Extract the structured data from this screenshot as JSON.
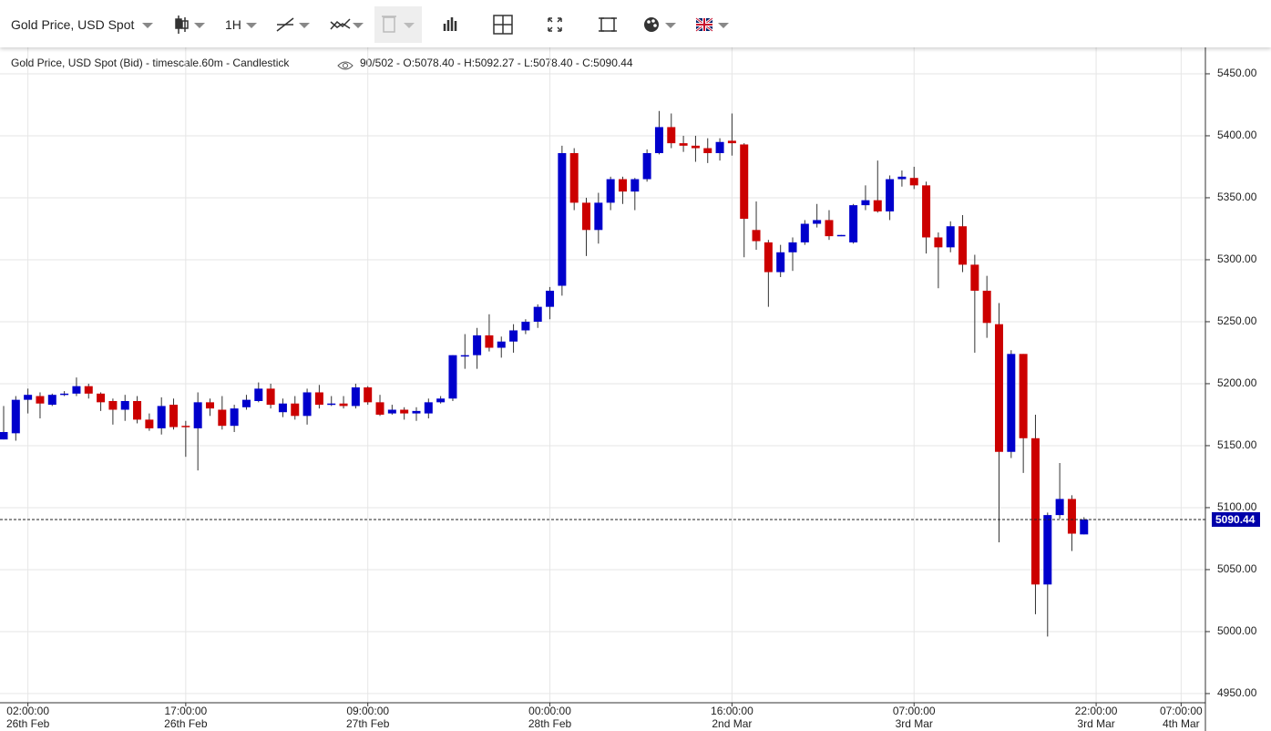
{
  "toolbar": {
    "instrument": "Gold Price, USD Spot",
    "interval": "1H"
  },
  "chart_data": {
    "type": "candlestick",
    "info_title": "Gold Price, USD Spot (Bid) - timescale.60m - Candlestick",
    "info_stats": "90/502 - O:5078.40 - H:5092.27 - L:5078.40 - C:5090.44",
    "up_color": "#0000cc",
    "down_color": "#cc0000",
    "grid": true,
    "xlim": [
      -0.3,
      99
    ],
    "ylim": [
      4942.6,
      5471.3
    ],
    "yticks": [
      {
        "value": 4950,
        "label": "4950.00"
      },
      {
        "value": 5000,
        "label": "5000.00"
      },
      {
        "value": 5050,
        "label": "5050.00"
      },
      {
        "value": 5100,
        "label": "5100.00"
      },
      {
        "value": 5150,
        "label": "5150.00"
      },
      {
        "value": 5200,
        "label": "5200.00"
      },
      {
        "value": 5250,
        "label": "5250.00"
      },
      {
        "value": 5300,
        "label": "5300.00"
      },
      {
        "value": 5350,
        "label": "5350.00"
      },
      {
        "value": 5400,
        "label": "5400.00"
      },
      {
        "value": 5450,
        "label": "5450.00"
      }
    ],
    "xticks": [
      {
        "value": 2,
        "label": [
          "02:00:00",
          "26th Feb"
        ]
      },
      {
        "value": 15,
        "label": [
          "17:00:00",
          "26th Feb"
        ]
      },
      {
        "value": 30,
        "label": [
          "09:00:00",
          "27th Feb"
        ]
      },
      {
        "value": 45,
        "label": [
          "00:00:00",
          "28th Feb"
        ]
      },
      {
        "value": 60,
        "label": [
          "16:00:00",
          "2nd Mar"
        ]
      },
      {
        "value": 75,
        "label": [
          "07:00:00",
          "3rd Mar"
        ]
      },
      {
        "value": 90,
        "label": [
          "22:00:00",
          "3rd Mar"
        ]
      },
      {
        "value": 97,
        "label": [
          "07:00:00",
          "4th Mar"
        ]
      }
    ],
    "open": [
      5155,
      5160,
      5187,
      5190,
      5183,
      5191,
      5192,
      5198,
      5192,
      5186,
      5179,
      5186,
      5171,
      5164,
      5183,
      5166,
      5164,
      5185,
      5179,
      5166,
      5181,
      5186,
      5196,
      5177,
      5184,
      5174,
      5193,
      5183,
      5184,
      5182,
      5197,
      5185,
      5176,
      5179,
      5176,
      5176,
      5185,
      5188,
      5222,
      5223,
      5239,
      5229,
      5234,
      5243,
      5250,
      5262,
      5279,
      5386,
      5346,
      5324,
      5346,
      5365,
      5355,
      5365,
      5386,
      5407,
      5394,
      5392,
      5390,
      5386,
      5396,
      5393,
      5324,
      5314,
      5290,
      5306,
      5314,
      5329,
      5332,
      5319,
      5314,
      5344,
      5348,
      5339,
      5365,
      5366,
      5360,
      5318,
      5310,
      5327,
      5296,
      5275,
      5248,
      5145,
      5224,
      5156,
      5038,
      5094,
      5107,
      5078.4
    ],
    "high": [
      5182,
      5190,
      5196,
      5193,
      5192,
      5194,
      5205,
      5200,
      5193,
      5188,
      5191,
      5190,
      5176,
      5189,
      5188,
      5170,
      5193,
      5188,
      5190,
      5183,
      5191,
      5201,
      5200,
      5188,
      5190,
      5196,
      5199,
      5190,
      5190,
      5200,
      5198,
      5191,
      5183,
      5181,
      5181,
      5188,
      5190,
      5223,
      5240,
      5245,
      5256,
      5238,
      5248,
      5252,
      5264,
      5278,
      5392,
      5390,
      5350,
      5354,
      5367,
      5367,
      5366,
      5389,
      5420,
      5418,
      5400,
      5400,
      5398,
      5398,
      5418,
      5394,
      5347,
      5316,
      5312,
      5318,
      5332,
      5345,
      5340,
      5320,
      5345,
      5360,
      5380,
      5368,
      5372,
      5375,
      5363,
      5322,
      5331,
      5336,
      5304,
      5287,
      5265,
      5227,
      5224,
      5175,
      5096,
      5136,
      5110,
      5092.27
    ],
    "low": [
      5155,
      5154,
      5176,
      5172,
      5182,
      5190,
      5190,
      5188,
      5178,
      5167,
      5170,
      5168,
      5162,
      5159,
      5163,
      5141,
      5130,
      5174,
      5163,
      5161,
      5179,
      5185,
      5180,
      5173,
      5171,
      5167,
      5180,
      5182,
      5180,
      5180,
      5183,
      5174,
      5175,
      5171,
      5170,
      5172,
      5184,
      5186,
      5212,
      5212,
      5226,
      5221,
      5225,
      5240,
      5245,
      5252,
      5271,
      5340,
      5303,
      5313,
      5340,
      5345,
      5340,
      5363,
      5385,
      5390,
      5387,
      5379,
      5378,
      5380,
      5384,
      5302,
      5308,
      5262,
      5286,
      5291,
      5312,
      5326,
      5316,
      5319,
      5313,
      5340,
      5338,
      5332,
      5359,
      5357,
      5305,
      5277,
      5306,
      5290,
      5225,
      5237,
      5072,
      5140,
      5128,
      5014,
      4996,
      5091,
      5065,
      5078.4
    ],
    "close": [
      5161,
      5187,
      5191,
      5184,
      5191,
      5192,
      5198,
      5192,
      5185,
      5179,
      5186,
      5171,
      5164,
      5182,
      5165,
      5165,
      5185,
      5180,
      5166,
      5180,
      5187,
      5196,
      5183,
      5184,
      5174,
      5193,
      5183,
      5184,
      5182,
      5197,
      5185,
      5175,
      5179,
      5176,
      5178,
      5185,
      5188,
      5223,
      5223,
      5239,
      5229,
      5234,
      5243,
      5250,
      5262,
      5275,
      5386,
      5346,
      5324,
      5346,
      5365,
      5355,
      5365,
      5386,
      5407,
      5394,
      5392,
      5390,
      5386,
      5395,
      5394,
      5333,
      5315,
      5290,
      5306,
      5314,
      5329,
      5332,
      5319,
      5320,
      5344,
      5348,
      5339,
      5365,
      5367,
      5360,
      5318,
      5310,
      5327,
      5296,
      5275,
      5249,
      5145,
      5224,
      5156,
      5038,
      5094,
      5107,
      5079,
      5090.44
    ]
  }
}
